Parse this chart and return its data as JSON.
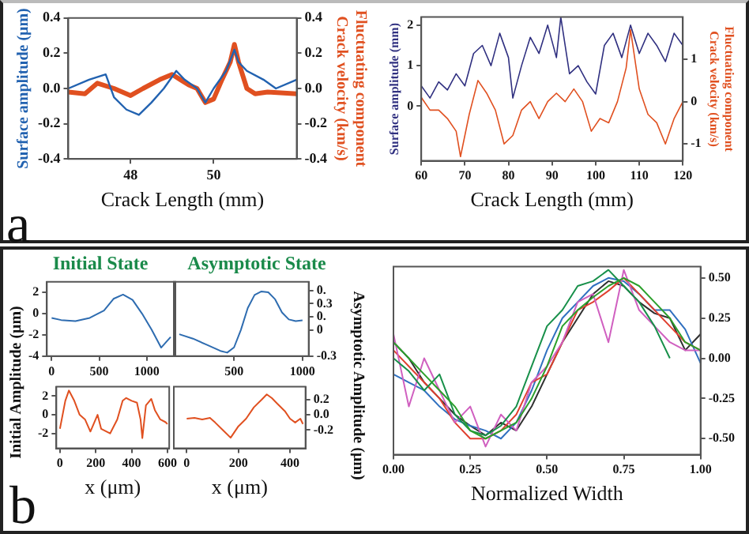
{
  "chart_data": [
    {
      "type": "line",
      "xlabel": "Crack Length (mm)",
      "ylabel": "Surface amplitude (μm)",
      "y2label": "Fluctuating component\nCrack velocity (km/s)",
      "annotations": [
        "a"
      ],
      "xlim": [
        46.5,
        52
      ],
      "xticks": [
        48,
        50
      ],
      "ylim": [
        -0.4,
        0.4
      ],
      "yticks": [
        0.4,
        0.2,
        {
          "value": 0,
          "label": "0.0"
        },
        -0.2,
        -0.4
      ],
      "y2lim": [
        -0.4,
        0.4
      ],
      "y2ticks": [
        0.4,
        0.2,
        {
          "value": 0,
          "label": "0.0"
        },
        -0.2,
        -0.4
      ],
      "grid": false,
      "legend": false,
      "series": [
        {
          "color": "#2262b0",
          "x": [
            46.5,
            47,
            47.4,
            47.6,
            47.9,
            48.2,
            48.5,
            48.8,
            49.1,
            49.3,
            49.6,
            49.8,
            50,
            50.3,
            50.5,
            50.6,
            50.8,
            51.2,
            51.5,
            52
          ],
          "values": [
            0.0,
            0.05,
            0.08,
            -0.05,
            -0.12,
            -0.15,
            -0.08,
            0.0,
            0.1,
            0.05,
            0.0,
            -0.08,
            0.0,
            0.1,
            0.22,
            0.15,
            0.1,
            0.05,
            0.0,
            0.05
          ]
        },
        {
          "color": "#e05020",
          "axis": "y2",
          "x": [
            46.5,
            46.9,
            47.2,
            47.6,
            48,
            48.3,
            48.7,
            49,
            49.2,
            49.4,
            49.6,
            49.8,
            50,
            50.2,
            50.4,
            50.5,
            50.6,
            50.8,
            51,
            51.3,
            52
          ],
          "values": [
            -0.02,
            -0.03,
            0.03,
            0.0,
            -0.04,
            0.0,
            0.05,
            0.08,
            0.05,
            0.02,
            0.0,
            -0.08,
            -0.06,
            0.05,
            0.15,
            0.25,
            0.15,
            0.0,
            -0.03,
            -0.02,
            -0.03
          ]
        }
      ]
    },
    {
      "type": "line",
      "xlabel": "Crack Length (mm)",
      "ylabel": "Surface amplitude (mm)",
      "y2label": "Fluctuating component\nCrack velocity (km/s)",
      "xlim": [
        60,
        120
      ],
      "xticks": [
        60,
        70,
        80,
        90,
        100,
        110,
        120
      ],
      "ylim": [
        -1.35,
        2.2
      ],
      "yticks": [
        0,
        1,
        2
      ],
      "y2lim": [
        -1.4,
        2
      ],
      "y2ticks": [
        -1,
        0,
        1
      ],
      "grid": false,
      "legend": false,
      "series": [
        {
          "color": "#303080",
          "x": [
            60,
            62,
            64,
            66,
            68,
            70,
            72,
            74,
            76,
            78,
            80,
            81,
            83,
            85,
            87,
            89,
            91,
            92,
            94,
            96,
            98,
            100,
            102,
            104,
            106,
            108,
            110,
            112,
            114,
            116,
            118,
            120
          ],
          "values": [
            0.5,
            0.2,
            0.6,
            0.4,
            0.8,
            0.5,
            1.3,
            1.5,
            1.0,
            1.8,
            1.2,
            0.2,
            1.0,
            1.7,
            1.3,
            2.0,
            1.2,
            2.2,
            0.8,
            1.0,
            0.6,
            0.3,
            1.5,
            1.8,
            1.2,
            2.0,
            1.3,
            1.8,
            1.5,
            1.1,
            1.8,
            1.5
          ]
        },
        {
          "color": "#e05020",
          "axis": "y2",
          "x": [
            60,
            62,
            64,
            66,
            68,
            69,
            71,
            73,
            75,
            77,
            79,
            81,
            83,
            85,
            87,
            89,
            91,
            93,
            95,
            97,
            99,
            101,
            103,
            105,
            107,
            108,
            110,
            112,
            114,
            116,
            118,
            120
          ],
          "values": [
            0.1,
            -0.2,
            -0.2,
            -0.4,
            -0.7,
            -1.3,
            -0.3,
            0.5,
            0.2,
            -0.2,
            -1.0,
            -0.8,
            -0.2,
            0.0,
            -0.4,
            0.0,
            0.2,
            0.0,
            0.3,
            0.0,
            -0.7,
            -0.4,
            -0.5,
            0.0,
            0.8,
            1.7,
            0.3,
            -0.3,
            -0.5,
            -1.0,
            -0.4,
            0.0
          ]
        }
      ]
    },
    {
      "type": "line",
      "title": "Initial State",
      "xlim": [
        -50,
        1300
      ],
      "xticks": [
        0,
        500,
        1000
      ],
      "ylim": [
        -4,
        3
      ],
      "yticks": [
        2,
        0,
        -2,
        -4
      ],
      "grid": false,
      "legend": false,
      "series": [
        {
          "color": "#2e6cb0",
          "x": [
            0,
            100,
            250,
            400,
            550,
            650,
            750,
            850,
            950,
            1050,
            1150,
            1250
          ],
          "values": [
            -0.4,
            -0.6,
            -0.7,
            -0.4,
            0.3,
            1.4,
            1.8,
            1.3,
            0,
            -1.5,
            -3.2,
            -2.2
          ]
        }
      ]
    },
    {
      "type": "line",
      "title": "Asymptotic State",
      "xlim": [
        60,
        1045
      ],
      "xticks": [
        500,
        1000
      ],
      "y2lim": [
        -0.3,
        0.55
      ],
      "y2ticks": [
        {
          "value": 0.45,
          "label": "0."
        },
        0.3,
        {
          "value": 0.15,
          "label": "0."
        },
        0,
        -0.3
      ],
      "grid": false,
      "legend": false,
      "series": [
        {
          "color": "#2e6cb0",
          "axis": "y2",
          "x": [
            100,
            200,
            300,
            400,
            450,
            500,
            550,
            600,
            650,
            700,
            750,
            800,
            850,
            900,
            950,
            1000
          ],
          "values": [
            -0.05,
            -0.1,
            -0.17,
            -0.24,
            -0.26,
            -0.2,
            0.0,
            0.25,
            0.4,
            0.44,
            0.43,
            0.35,
            0.2,
            0.12,
            0.1,
            0.11
          ]
        }
      ]
    },
    {
      "type": "line",
      "xlabel": "Normalized Width",
      "xlim": [
        0,
        1
      ],
      "xticks": [
        {
          "value": 0,
          "label": "0.00"
        },
        {
          "value": 0.25,
          "label": "0.25"
        },
        {
          "value": 0.5,
          "label": "0.50"
        },
        {
          "value": 0.75,
          "label": "0.75"
        },
        {
          "value": 1,
          "label": "1.00"
        }
      ],
      "y2lim": [
        -0.6,
        0.57
      ],
      "y2ticks": [
        {
          "value": 0.5,
          "label": "0.50"
        },
        {
          "value": 0.25,
          "label": "0.25"
        },
        {
          "value": 0,
          "label": "0.00"
        },
        {
          "value": -0.25,
          "label": "-0.25"
        },
        {
          "value": -0.5,
          "label": "-0.50"
        }
      ],
      "grid": false,
      "legend": false,
      "x": [
        0,
        0.05,
        0.1,
        0.15,
        0.2,
        0.25,
        0.3,
        0.35,
        0.4,
        0.45,
        0.5,
        0.55,
        0.6,
        0.65,
        0.7,
        0.75,
        0.8,
        0.85,
        0.9,
        0.95,
        1
      ],
      "series": [
        {
          "color": "#2ca02c",
          "axis": "y2",
          "values": [
            0.1,
            0.0,
            -0.1,
            -0.2,
            -0.3,
            -0.45,
            -0.5,
            -0.45,
            -0.4,
            -0.25,
            -0.05,
            0.2,
            0.3,
            0.38,
            0.45,
            0.5,
            0.45,
            0.35,
            0.25,
            0.1,
            0.05
          ]
        },
        {
          "color": "#18904a",
          "axis": "y2",
          "values": [
            0.0,
            -0.08,
            -0.2,
            -0.1,
            -0.35,
            -0.45,
            -0.48,
            -0.42,
            -0.3,
            -0.05,
            0.2,
            0.3,
            0.45,
            0.48,
            0.55,
            0.45,
            0.35,
            0.2,
            0.0,
            null,
            null
          ]
        },
        {
          "color": "#d060c0",
          "axis": "y2",
          "values": [
            0.15,
            -0.3,
            0.0,
            -0.2,
            -0.4,
            -0.3,
            -0.55,
            -0.35,
            -0.45,
            -0.15,
            -0.05,
            0.1,
            0.35,
            0.4,
            0.1,
            0.55,
            0.3,
            0.2,
            0.1,
            0.05,
            0.05
          ]
        },
        {
          "color": "#e04030",
          "axis": "y2",
          "values": [
            0.05,
            -0.05,
            -0.15,
            -0.25,
            -0.4,
            -0.5,
            -0.5,
            -0.45,
            -0.35,
            -0.15,
            -0.1,
            0.1,
            0.3,
            0.35,
            0.42,
            0.5,
            0.4,
            0.3,
            0.2,
            0.1,
            0.05
          ]
        },
        {
          "color": "#3070c0",
          "axis": "y2",
          "values": [
            -0.1,
            -0.15,
            -0.2,
            -0.3,
            -0.38,
            -0.42,
            -0.45,
            -0.5,
            -0.4,
            -0.2,
            0.05,
            0.25,
            0.35,
            0.45,
            0.5,
            0.48,
            0.4,
            0.3,
            0.3,
            0.18,
            -0.03
          ]
        },
        {
          "color": "#303030",
          "axis": "y2",
          "values": [
            0.1,
            0.0,
            -0.15,
            -0.25,
            -0.35,
            -0.42,
            -0.48,
            -0.4,
            -0.45,
            -0.3,
            -0.1,
            0.1,
            0.25,
            0.4,
            0.48,
            0.45,
            0.35,
            0.28,
            0.25,
            0.05,
            0.15
          ]
        }
      ]
    },
    {
      "type": "line",
      "xlabel": "x (μm)",
      "ylabel": "Initial Amplitude (μm)",
      "annotations": [
        "b"
      ],
      "xlim": [
        -20,
        610
      ],
      "xticks": [
        0,
        200,
        400,
        600
      ],
      "ylim": [
        -3.6,
        3
      ],
      "yticks": [
        2,
        0,
        -2
      ],
      "grid": false,
      "legend": false,
      "series": [
        {
          "color": "#e05020",
          "x": [
            0,
            30,
            50,
            80,
            110,
            140,
            170,
            210,
            230,
            280,
            320,
            350,
            370,
            400,
            430,
            450,
            460,
            480,
            510,
            530,
            560,
            590,
            600
          ],
          "values": [
            -1.5,
            1.5,
            2.6,
            1.5,
            0,
            -0.5,
            -1.8,
            0,
            -1.5,
            -2.0,
            -0.5,
            1.5,
            1.8,
            1.5,
            1.3,
            -0.5,
            -2.5,
            1.0,
            1.7,
            0.5,
            -0.5,
            -0.8,
            -1.0
          ]
        }
      ]
    },
    {
      "type": "line",
      "xlabel": "x (μm)",
      "y2label": "Asymptotic Amplitude (μm)",
      "xlim": [
        -50,
        460
      ],
      "xticks": [
        0,
        200,
        400
      ],
      "y2lim": [
        -0.44,
        0.37
      ],
      "y2ticks": [
        0.2,
        {
          "value": 0,
          "label": "0.0"
        },
        -0.2
      ],
      "grid": false,
      "legend": false,
      "series": [
        {
          "color": "#e05020",
          "axis": "y2",
          "x": [
            0,
            30,
            60,
            90,
            110,
            140,
            170,
            200,
            230,
            260,
            290,
            310,
            330,
            350,
            380,
            400,
            420,
            440,
            450
          ],
          "values": [
            -0.05,
            -0.04,
            -0.06,
            -0.04,
            -0.1,
            -0.2,
            -0.3,
            -0.15,
            -0.05,
            0.1,
            0.2,
            0.27,
            0.22,
            0.15,
            0.05,
            -0.05,
            -0.1,
            -0.05,
            -0.12
          ]
        }
      ]
    }
  ]
}
